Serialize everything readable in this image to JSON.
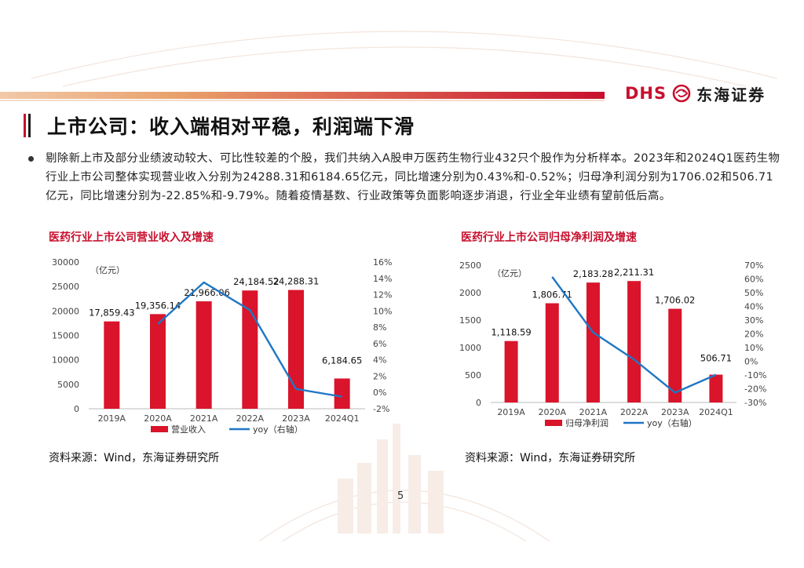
{
  "header": {
    "logo_latin": "DHS",
    "logo_cn": "东海证券",
    "brand_color": "#c8102e"
  },
  "slide": {
    "title": "上市公司：收入端相对平稳，利润端下滑",
    "paragraph": "剔除新上市及部分业绩波动较大、可比性较差的个股，我们共纳入A股申万医药生物行业432只个股作为分析样本。2023年和2024Q1医药生物行业上市公司整体实现营业收入分别为24288.31和6184.65亿元，同比增速分别为0.43%和-0.52%；归母净利润分别为1706.02和506.71亿元，同比增速分别为-22.85%和-9.79%。随着疫情基数、行业政策等负面影响逐步消退，行业全年业绩有望前低后高。",
    "page_number": "5"
  },
  "chart_data": [
    {
      "type": "bar",
      "title": "医药行业上市公司营业收入及增速",
      "unit_label": "（亿元）",
      "categories": [
        "2019A",
        "2020A",
        "2021A",
        "2022A",
        "2023A",
        "2024Q1"
      ],
      "series": [
        {
          "name": "营业收入",
          "type": "bar",
          "axis": "left",
          "values": [
            17859.43,
            19356.14,
            21966.06,
            24184.52,
            24288.31,
            6184.65
          ],
          "labels": [
            "17,859.43",
            "19,356.14",
            "21,966.06",
            "24,184.52",
            "24,288.31",
            "6,184.65"
          ],
          "color": "#d9142b"
        },
        {
          "name": "yoy（右轴）",
          "type": "line",
          "axis": "right",
          "values": [
            null,
            8.4,
            13.5,
            10.1,
            0.43,
            -0.52
          ],
          "color": "#1f77c4"
        }
      ],
      "ylim_left": [
        0,
        30000
      ],
      "yticks_left": [
        0,
        5000,
        10000,
        15000,
        20000,
        25000,
        30000
      ],
      "ylim_right": [
        -2,
        16
      ],
      "yticks_right": [
        "-2%",
        "0%",
        "2%",
        "4%",
        "6%",
        "8%",
        "10%",
        "12%",
        "14%",
        "16%"
      ],
      "source": "资料来源：Wind，东海证券研究所"
    },
    {
      "type": "bar",
      "title": "医药行业上市公司归母净利润及增速",
      "unit_label": "（亿元）",
      "categories": [
        "2019A",
        "2020A",
        "2021A",
        "2022A",
        "2023A",
        "2024Q1"
      ],
      "series": [
        {
          "name": "归母净利润",
          "type": "bar",
          "axis": "left",
          "values": [
            1118.59,
            1806.71,
            2183.28,
            2211.31,
            1706.02,
            506.71
          ],
          "labels": [
            "1,118.59",
            "1,806.71",
            "2,183.28",
            "2,211.31",
            "1,706.02",
            "506.71"
          ],
          "color": "#d9142b"
        },
        {
          "name": "yoy（右轴）",
          "type": "line",
          "axis": "right",
          "values": [
            null,
            61.5,
            21.0,
            1.3,
            -22.85,
            -9.79
          ],
          "color": "#1f77c4"
        }
      ],
      "ylim_left": [
        0,
        2500
      ],
      "yticks_left": [
        0,
        500,
        1000,
        1500,
        2000,
        2500
      ],
      "ylim_right": [
        -30,
        70
      ],
      "yticks_right": [
        "-30%",
        "-20%",
        "-10%",
        "0%",
        "10%",
        "20%",
        "30%",
        "40%",
        "50%",
        "60%",
        "70%"
      ],
      "source": "资料来源：Wind，东海证券研究所"
    }
  ]
}
